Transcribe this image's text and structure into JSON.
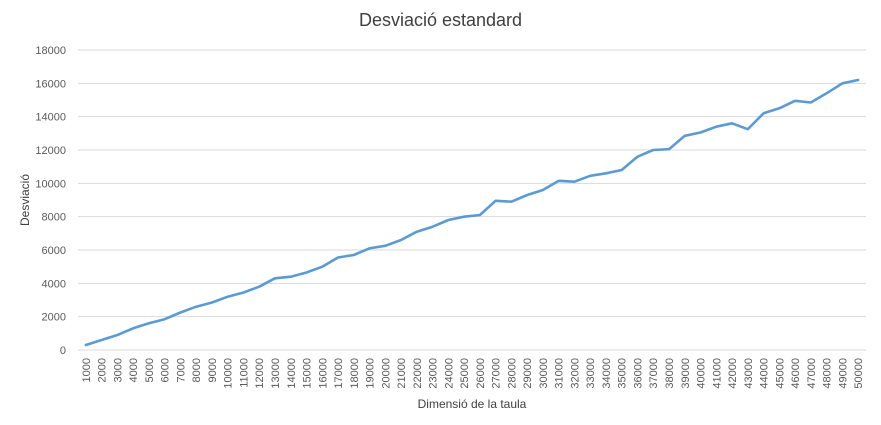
{
  "chart_data": {
    "type": "line",
    "title": "Desviació estandard",
    "xlabel": "Dimensió de la taula",
    "ylabel": "Desviació",
    "ylim": [
      0,
      18000
    ],
    "yticks": [
      0,
      2000,
      4000,
      6000,
      8000,
      10000,
      12000,
      14000,
      16000,
      18000
    ],
    "grid": true,
    "line_color": "#5b9bd5",
    "categories": [
      "1000",
      "2000",
      "3000",
      "4000",
      "5000",
      "6000",
      "7000",
      "8000",
      "9000",
      "10000",
      "11000",
      "12000",
      "13000",
      "14000",
      "15000",
      "16000",
      "17000",
      "18000",
      "19000",
      "20000",
      "21000",
      "22000",
      "23000",
      "24000",
      "25000",
      "26000",
      "27000",
      "28000",
      "29000",
      "30000",
      "31000",
      "32000",
      "33000",
      "34000",
      "35000",
      "36000",
      "37000",
      "38000",
      "39000",
      "40000",
      "41000",
      "42000",
      "43000",
      "44000",
      "45000",
      "46000",
      "47000",
      "48000",
      "49000",
      "50000"
    ],
    "series": [
      {
        "name": "Desviació",
        "values": [
          300,
          600,
          900,
          1300,
          1600,
          1850,
          2250,
          2600,
          2850,
          3200,
          3450,
          3800,
          4300,
          4400,
          4650,
          5000,
          5550,
          5700,
          6100,
          6250,
          6600,
          7100,
          7400,
          7800,
          8000,
          8100,
          8950,
          8900,
          9300,
          9600,
          10150,
          10100,
          10450,
          10600,
          10800,
          11600,
          12000,
          12050,
          12850,
          13050,
          13400,
          13600,
          13250,
          14200,
          14500,
          14950,
          14850,
          15400,
          16000,
          16200
        ]
      }
    ]
  }
}
